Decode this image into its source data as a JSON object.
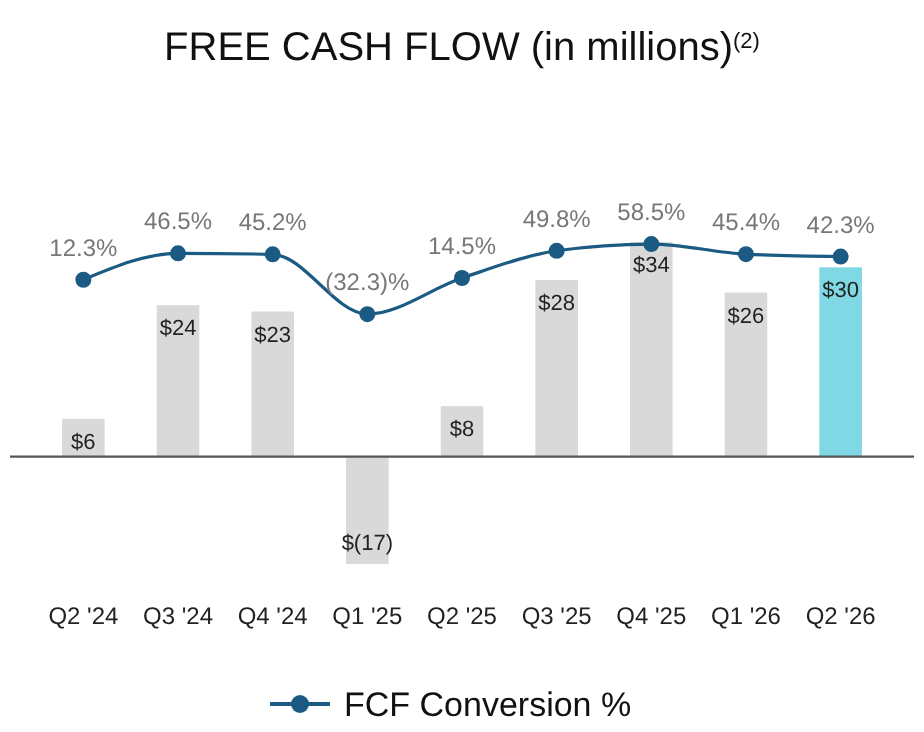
{
  "chart_data": {
    "type": "bar",
    "title": "FREE CASH FLOW (in millions)$^{(2)}$",
    "categories": [
      "Q2 '24",
      "Q3 '24",
      "Q4 '24",
      "Q1 '25",
      "Q2 '25",
      "Q3 '25",
      "Q4 '25",
      "Q1 '26",
      "Q2 '26"
    ],
    "tick_labels": "x",
    "legend": "bottom",
    "series": [
      {
        "colors": [
          "#d9d9d9",
          "#d9d9d9",
          "#d9d9d9",
          "#d9d9d9",
          "#d9d9d9",
          "#d9d9d9",
          "#d9d9d9",
          "#d9d9d9",
          "#7fd8e3"
        ],
        "values": [
          6,
          24,
          23,
          -17,
          8,
          28,
          34,
          26,
          30
        ],
        "value_labels": [
          "$6",
          "$24",
          "$23",
          "$(17)",
          "$8",
          "$28",
          "$34",
          "$26",
          "$30"
        ]
      },
      {
        "type": "line",
        "name": "FCF Conversion %",
        "color": "#1b5a82",
        "axis": "y2",
        "marker": "circle",
        "line_style": "solid",
        "values": [
          12.3,
          46.5,
          45.2,
          -32.3,
          14.5,
          49.8,
          58.5,
          45.4,
          42.3
        ],
        "value_labels": [
          "12.3%",
          "46.5%",
          "45.2%",
          "(32.3)%",
          "14.5%",
          "49.8%",
          "58.5%",
          "45.4%",
          "42.3%"
        ]
      }
    ]
  }
}
